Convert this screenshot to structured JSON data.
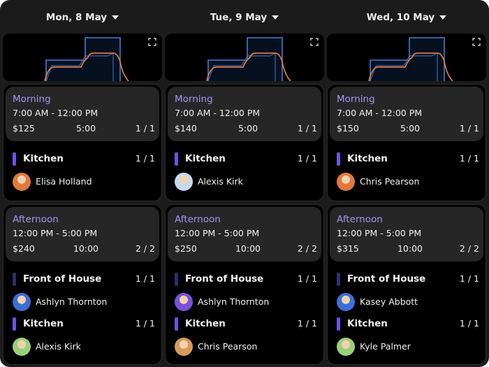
{
  "days": [
    {
      "date": "Mon, 8 May",
      "shifts": [
        {
          "name": "Morning",
          "time": "7:00 AM - 12:00 PM",
          "pay": "$125",
          "hours": "5:00",
          "fill": "1 / 1",
          "roles": [
            {
              "name": "Kitchen",
              "color": "#6f52e6",
              "count": "1 / 1",
              "people": [
                "Elisa Holland"
              ]
            }
          ]
        },
        {
          "name": "Afternoon",
          "time": "12:00 PM - 5:00 PM",
          "pay": "$240",
          "hours": "10:00",
          "fill": "2 / 2",
          "roles": [
            {
              "name": "Front of House",
              "color": "#2c2f6e",
              "count": "1 / 1",
              "people": [
                "Ashlyn Thornton"
              ]
            },
            {
              "name": "Kitchen",
              "color": "#6f52e6",
              "count": "1 / 1",
              "people": [
                "Alexis Kirk"
              ]
            }
          ]
        }
      ]
    },
    {
      "date": "Tue, 9 May",
      "shifts": [
        {
          "name": "Morning",
          "time": "7:00 AM - 12:00 PM",
          "pay": "$140",
          "hours": "5:00",
          "fill": "1 / 1",
          "roles": [
            {
              "name": "Kitchen",
              "color": "#6f52e6",
              "count": "1 / 1",
              "people": [
                "Alexis Kirk"
              ]
            }
          ]
        },
        {
          "name": "Afternoon",
          "time": "12:00 PM - 5:00 PM",
          "pay": "$250",
          "hours": "10:00",
          "fill": "2 / 2",
          "roles": [
            {
              "name": "Front of House",
              "color": "#2c2f6e",
              "count": "1 / 1",
              "people": [
                "Ashlyn Thornton"
              ]
            },
            {
              "name": "Kitchen",
              "color": "#6f52e6",
              "count": "1 / 1",
              "people": [
                "Chris Pearson"
              ]
            }
          ]
        }
      ]
    },
    {
      "date": "Wed, 10 May",
      "shifts": [
        {
          "name": "Morning",
          "time": "7:00 AM - 12:00 PM",
          "pay": "$150",
          "hours": "5:00",
          "fill": "1 / 1",
          "roles": [
            {
              "name": "Kitchen",
              "color": "#6f52e6",
              "count": "1 / 1",
              "people": [
                "Chris Pearson"
              ]
            }
          ]
        },
        {
          "name": "Afternoon",
          "time": "12:00 PM - 5:00 PM",
          "pay": "$315",
          "hours": "10:00",
          "fill": "2 / 2",
          "roles": [
            {
              "name": "Front of House",
              "color": "#2c2f6e",
              "count": "1 / 1",
              "people": [
                "Kasey Abbott"
              ]
            },
            {
              "name": "Kitchen",
              "color": "#6f52e6",
              "count": "1 / 1",
              "people": [
                "Kyle Palmer"
              ]
            }
          ]
        }
      ]
    }
  ]
}
